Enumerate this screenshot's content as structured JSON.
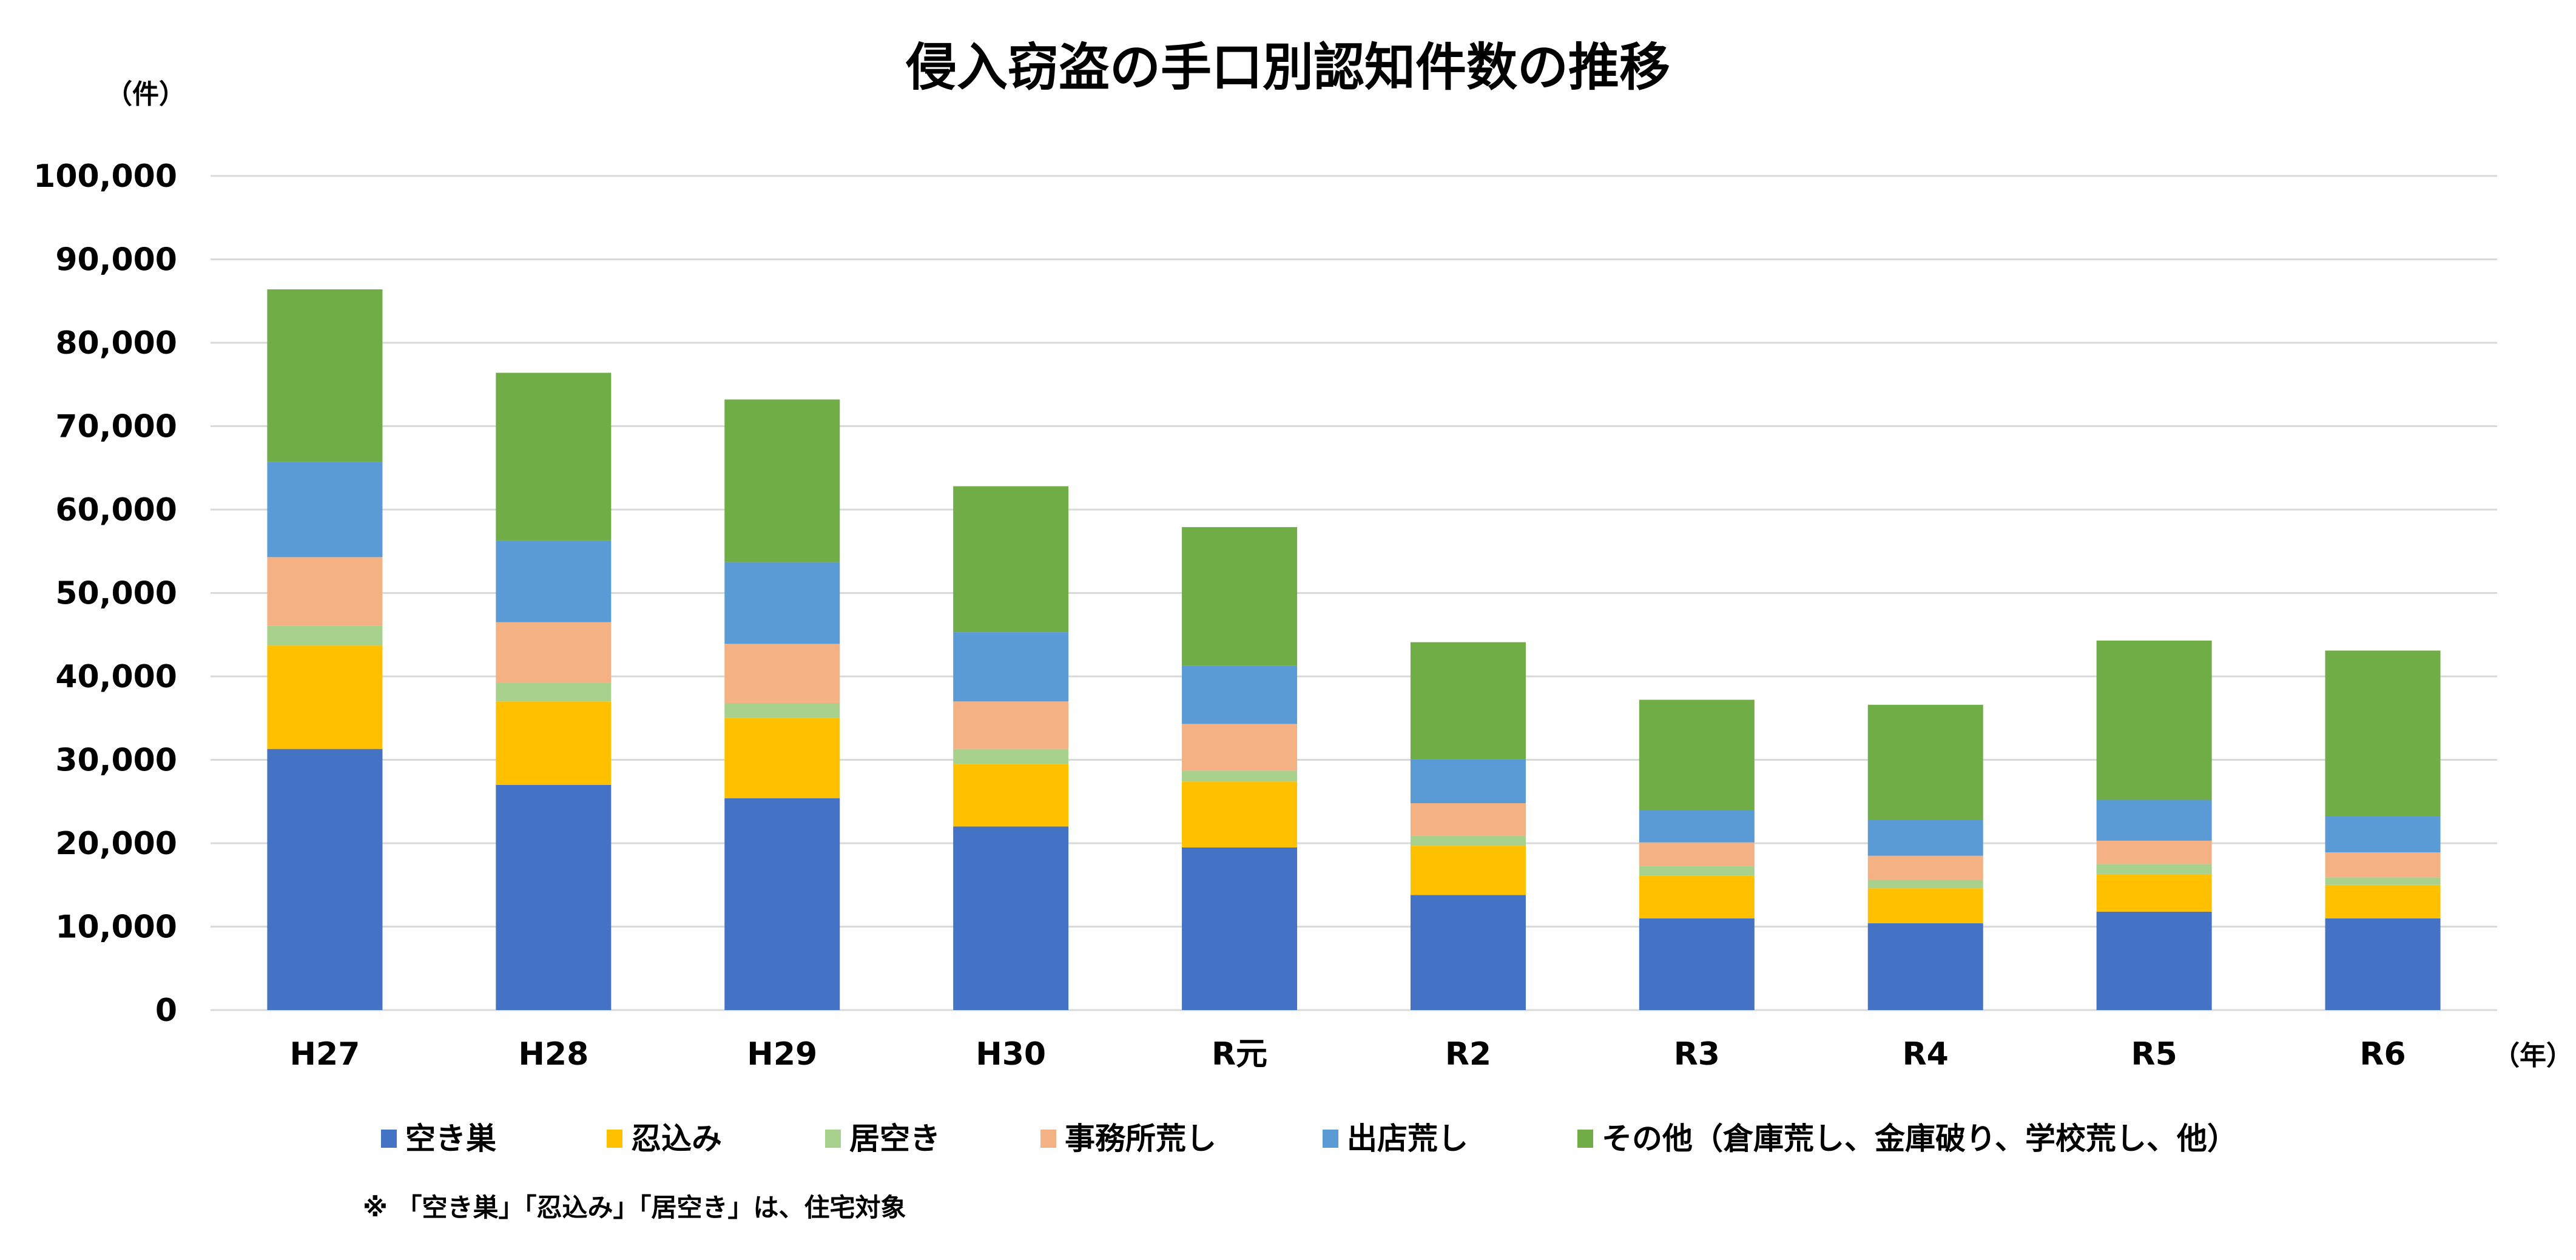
{
  "chart_data": {
    "type": "bar",
    "stacked": true,
    "title": "侵入窃盗の手口別認知件数の推移",
    "ylabel": "（件）",
    "xlabel": "（年）",
    "ylim": [
      0,
      100000
    ],
    "yticks": [
      "0",
      "10,000",
      "20,000",
      "30,000",
      "40,000",
      "50,000",
      "60,000",
      "70,000",
      "80,000",
      "90,000",
      "100,000"
    ],
    "grid": true,
    "legend_position": "bottom",
    "categories": [
      "H27",
      "H28",
      "H29",
      "H30",
      "R元",
      "R2",
      "R3",
      "R4",
      "R5",
      "R6"
    ],
    "series": [
      {
        "name": "空き巣",
        "color": "#4472C4",
        "values": [
          31300,
          27000,
          25400,
          22000,
          19500,
          13800,
          11000,
          10400,
          11800,
          11000
        ]
      },
      {
        "name": "忍込み",
        "color": "#FFC000",
        "values": [
          12400,
          10000,
          9600,
          7500,
          7900,
          5900,
          5100,
          4200,
          4500,
          4000
        ]
      },
      {
        "name": "居空き",
        "color": "#A9D18E",
        "values": [
          2400,
          2200,
          1800,
          1800,
          1300,
          1200,
          1200,
          1000,
          1200,
          900
        ]
      },
      {
        "name": "事務所荒し",
        "color": "#F4B183",
        "values": [
          8200,
          7300,
          7100,
          5700,
          5600,
          3900,
          2800,
          2900,
          2800,
          3000
        ]
      },
      {
        "name": "出店荒し",
        "color": "#5B9BD5",
        "values": [
          11400,
          9800,
          9800,
          8300,
          7000,
          5300,
          3900,
          4300,
          4900,
          4300
        ]
      },
      {
        "name": "その他（倉庫荒し、金庫破り、学校荒し、他）",
        "color": "#70AD47",
        "values": [
          20700,
          20100,
          19500,
          17500,
          16600,
          14000,
          13200,
          13800,
          19100,
          19900
        ]
      }
    ],
    "note": "※ 「空き巣」「忍込み」「居空き」は、住宅対象"
  }
}
